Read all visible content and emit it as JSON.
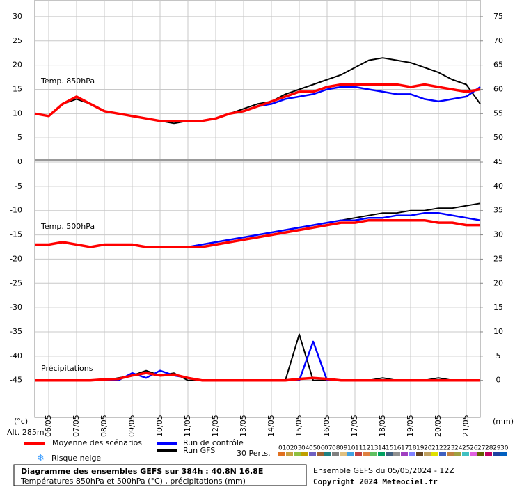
{
  "chart_data": {
    "type": "line",
    "ylabel": "(°c)",
    "y2label": "(mm)",
    "altitude": "Alt. 285m",
    "panel_labels": [
      "Temp. 850hPa",
      "Temp. 500hPa",
      "Précipitations"
    ],
    "x": [
      0,
      12,
      24,
      36,
      48,
      60,
      72,
      84,
      96,
      108,
      120,
      132,
      144,
      156,
      168,
      180,
      192,
      204,
      216,
      228,
      240,
      252,
      264,
      276,
      288,
      300,
      312,
      324,
      336,
      348,
      360,
      372,
      384
    ],
    "xlim": [
      0,
      384
    ],
    "xticks": [
      {
        "value": 12,
        "label": "06/05"
      },
      {
        "value": 36,
        "label": "07/05"
      },
      {
        "value": 60,
        "label": "08/05"
      },
      {
        "value": 84,
        "label": "09/05"
      },
      {
        "value": 108,
        "label": "10/05"
      },
      {
        "value": 132,
        "label": "11/05"
      },
      {
        "value": 156,
        "label": "12/05"
      },
      {
        "value": 180,
        "label": "13/05"
      },
      {
        "value": 204,
        "label": "14/05"
      },
      {
        "value": 228,
        "label": "15/05"
      },
      {
        "value": 252,
        "label": "16/05"
      },
      {
        "value": 276,
        "label": "17/05"
      },
      {
        "value": 300,
        "label": "18/05"
      },
      {
        "value": 324,
        "label": "19/05"
      },
      {
        "value": 348,
        "label": "20/05"
      },
      {
        "value": 372,
        "label": "21/05"
      }
    ],
    "ylim": [
      -52.65,
      33.43
    ],
    "yticks": [
      30,
      25,
      20,
      15,
      10,
      5,
      0,
      -5,
      -10,
      -15,
      -20,
      -25,
      -30,
      -35,
      -40,
      -45
    ],
    "y2lim": [
      -7.65,
      78.43
    ],
    "y2ticks": [
      75,
      70,
      65,
      60,
      55,
      50,
      45,
      40,
      35,
      30,
      25,
      20,
      15,
      10,
      5,
      0
    ],
    "grid": true,
    "series": [
      {
        "name": "Moyenne des scénarios",
        "color": "#ff0000",
        "width": 3.5,
        "values": [
          10,
          9.5,
          12,
          13.5,
          12,
          10.5,
          10,
          9.5,
          9,
          8.5,
          8.5,
          8.5,
          8.5,
          9,
          10,
          10.5,
          11.5,
          12.5,
          13.5,
          14.5,
          14.5,
          15.5,
          16,
          16,
          16,
          16,
          16,
          15.5,
          16,
          15.5,
          15,
          14.5,
          15
        ],
        "values_500": [
          -17,
          -17,
          -16.5,
          -17,
          -17.5,
          -17,
          -17,
          -17,
          -17.5,
          -17.5,
          -17.5,
          -17.5,
          -17.5,
          -17,
          -16.5,
          -16,
          -15.5,
          -15,
          -14.5,
          -14,
          -13.5,
          -13,
          -12.5,
          -12.5,
          -12,
          -12,
          -12,
          -12,
          -12,
          -12.5,
          -12.5,
          -13,
          -13
        ],
        "precip": [
          0,
          0,
          0,
          0,
          0,
          0.2,
          0.3,
          1,
          1.5,
          1,
          1.2,
          0.5,
          0,
          0,
          0,
          0,
          0,
          0,
          0,
          0.3,
          0.5,
          0.3,
          0,
          0,
          0,
          0,
          0,
          0,
          0,
          0,
          0,
          0,
          0
        ]
      },
      {
        "name": "Run de contrôle",
        "color": "#0000ff",
        "width": 2.5,
        "values": [
          10,
          9.5,
          12,
          13.5,
          12,
          10.5,
          10,
          9.5,
          9,
          8.5,
          8.5,
          8.5,
          8.5,
          9,
          10,
          10.5,
          11.5,
          12,
          13,
          13.5,
          14,
          15,
          15.5,
          15.5,
          15,
          14.5,
          14,
          14,
          13,
          12.5,
          13,
          13.5,
          15.5
        ],
        "values_500": [
          -17,
          -17,
          -16.5,
          -17,
          -17.5,
          -17,
          -17,
          -17,
          -17.5,
          -17.5,
          -17.5,
          -17.5,
          -17,
          -16.5,
          -16,
          -15.5,
          -15,
          -14.5,
          -14,
          -13.5,
          -13,
          -12.5,
          -12,
          -12,
          -11.5,
          -11.5,
          -11,
          -11,
          -10.5,
          -10.5,
          -11,
          -11.5,
          -12
        ],
        "precip": [
          0,
          0,
          0,
          0,
          0,
          0,
          0,
          1.5,
          0.5,
          2,
          1,
          0.5,
          0,
          0,
          0,
          0,
          0,
          0,
          0,
          0,
          8,
          0,
          0,
          0,
          0,
          0,
          0,
          0,
          0,
          0,
          0,
          0,
          0
        ]
      },
      {
        "name": "Run GFS",
        "color": "#000000",
        "width": 2,
        "values": [
          10,
          9.5,
          12,
          13,
          12,
          10.5,
          10,
          9.5,
          9,
          8.5,
          8,
          8.5,
          8.5,
          9,
          10,
          11,
          12,
          12.5,
          14,
          15,
          16,
          17,
          18,
          19.5,
          21,
          21.5,
          21,
          20.5,
          19.5,
          18.5,
          17,
          16,
          12
        ],
        "values_500": [
          -17,
          -17,
          -16.5,
          -17,
          -17.5,
          -17,
          -17,
          -17,
          -17.5,
          -17.5,
          -17.5,
          -17.5,
          -17,
          -16.5,
          -16,
          -15.5,
          -15,
          -14.5,
          -14,
          -13.5,
          -13,
          -12.5,
          -12,
          -11.5,
          -11,
          -10.5,
          -10.5,
          -10,
          -10,
          -9.5,
          -9.5,
          -9,
          -8.5
        ],
        "precip": [
          0,
          0,
          0,
          0,
          0,
          0,
          0.5,
          1,
          2,
          1,
          1.5,
          0,
          0,
          0,
          0,
          0,
          0,
          0,
          0,
          9.5,
          0,
          0,
          0,
          0,
          0,
          0.5,
          0,
          0,
          0,
          0.5,
          0,
          0,
          0
        ]
      }
    ],
    "members_label": "30 Perts.",
    "members": [
      {
        "label": "01",
        "color": "#e07020"
      },
      {
        "label": "02",
        "color": "#c8a040"
      },
      {
        "label": "03",
        "color": "#90c040"
      },
      {
        "label": "04",
        "color": "#c0a000"
      },
      {
        "label": "05",
        "color": "#7060c0"
      },
      {
        "label": "06",
        "color": "#a06030"
      },
      {
        "label": "07",
        "color": "#208080"
      },
      {
        "label": "08",
        "color": "#808080"
      },
      {
        "label": "09",
        "color": "#e0c080"
      },
      {
        "label": "10",
        "color": "#40a0e0"
      },
      {
        "label": "11",
        "color": "#c04040"
      },
      {
        "label": "12",
        "color": "#e08040"
      },
      {
        "label": "13",
        "color": "#60c060"
      },
      {
        "label": "14",
        "color": "#00a060"
      },
      {
        "label": "15",
        "color": "#406080"
      },
      {
        "label": "16",
        "color": "#909090"
      },
      {
        "label": "17",
        "color": "#a040c0"
      },
      {
        "label": "18",
        "color": "#8080ff"
      },
      {
        "label": "19",
        "color": "#604020"
      },
      {
        "label": "20",
        "color": "#c0a060"
      },
      {
        "label": "21",
        "color": "#e0e000"
      },
      {
        "label": "22",
        "color": "#4060c0"
      },
      {
        "label": "23",
        "color": "#c08040"
      },
      {
        "label": "24",
        "color": "#a0a040"
      },
      {
        "label": "25",
        "color": "#40c0c0"
      },
      {
        "label": "26",
        "color": "#e060e0"
      },
      {
        "label": "27",
        "color": "#606000"
      },
      {
        "label": "28",
        "color": "#c00060"
      },
      {
        "label": "29",
        "color": "#2040a0"
      },
      {
        "label": "30",
        "color": "#0060c0"
      }
    ],
    "snow_label": "Risque neige"
  },
  "footer": {
    "title": "Diagramme des ensembles GEFS sur 384h : 40.8N 16.8E",
    "subtitle": "Températures 850hPa et 500hPa (°C) , précipitations (mm)",
    "run": "Ensemble GEFS du 05/05/2024 - 12Z",
    "copyright": "Copyright 2024 Meteociel.fr"
  }
}
